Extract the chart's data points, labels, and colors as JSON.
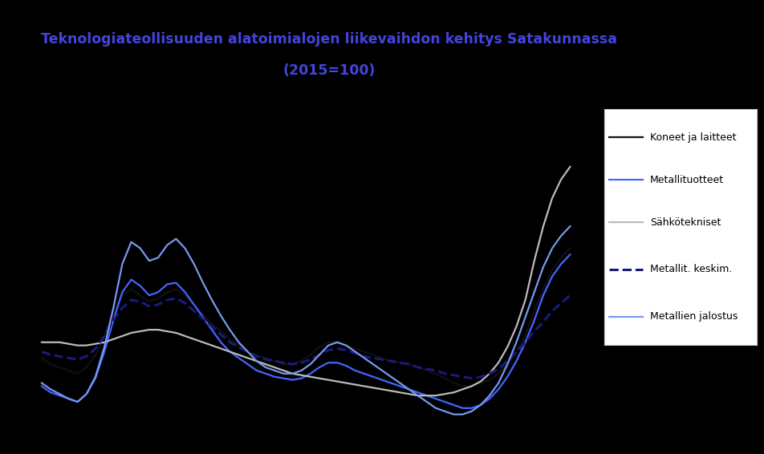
{
  "title_line1": "Teknologiateollisuuden alatoimialojen liikevaihdon kehitys Satakunnassa",
  "title_line2": "(2015=100)",
  "title_color": "#4444dd",
  "background_color": "#000000",
  "plot_bg_color": "#000000",
  "legend_bg_color": "#ffffff",
  "legend_text_color": "#000000",
  "series_order": [
    "Koneet ja laitteet",
    "Metallituotteet",
    "Sähkötekniset",
    "Metallit. keskim.",
    "Metallien jalostus"
  ],
  "series": {
    "Koneet ja laitteet": {
      "color": "#111111",
      "linestyle": "solid",
      "linewidth": 1.6
    },
    "Metallituotteet": {
      "color": "#4466ff",
      "linestyle": "solid",
      "linewidth": 1.6
    },
    "Sähkötekniset": {
      "color": "#bbbbbb",
      "linestyle": "solid",
      "linewidth": 1.6
    },
    "Metallit. keskim.": {
      "color": "#1a1a7a",
      "linestyle": "dashed",
      "linewidth": 2.2
    },
    "Metallien jalostus": {
      "color": "#7799ee",
      "linestyle": "solid",
      "linewidth": 1.6
    }
  },
  "koneet_ja_laitteet": [
    78,
    74,
    72,
    70,
    68,
    72,
    80,
    92,
    108,
    118,
    122,
    118,
    114,
    116,
    120,
    122,
    118,
    112,
    106,
    100,
    95,
    90,
    86,
    82,
    80,
    78,
    76,
    74,
    74,
    76,
    80,
    85,
    88,
    88,
    86,
    84,
    82,
    80,
    78,
    76,
    75,
    74,
    72,
    70,
    68,
    65,
    62,
    60,
    60,
    62,
    64,
    68,
    74,
    82,
    92,
    108,
    122,
    134,
    142,
    148
  ],
  "metallituotteet": [
    60,
    56,
    54,
    52,
    50,
    55,
    65,
    82,
    102,
    120,
    128,
    124,
    118,
    120,
    125,
    126,
    120,
    112,
    104,
    96,
    88,
    82,
    78,
    74,
    70,
    68,
    66,
    65,
    64,
    65,
    68,
    72,
    75,
    75,
    73,
    70,
    68,
    66,
    64,
    62,
    60,
    58,
    56,
    54,
    52,
    50,
    48,
    46,
    46,
    48,
    52,
    58,
    66,
    76,
    88,
    102,
    118,
    130,
    138,
    144
  ],
  "sahkotekniset": [
    88,
    88,
    88,
    87,
    86,
    86,
    87,
    88,
    90,
    92,
    94,
    95,
    96,
    96,
    95,
    94,
    92,
    90,
    88,
    86,
    84,
    82,
    80,
    78,
    76,
    74,
    72,
    70,
    68,
    67,
    66,
    65,
    64,
    63,
    62,
    61,
    60,
    59,
    58,
    57,
    56,
    55,
    54,
    54,
    54,
    55,
    56,
    58,
    60,
    63,
    68,
    75,
    85,
    98,
    115,
    140,
    162,
    180,
    192,
    200
  ],
  "metallit_keskim": [
    82,
    80,
    79,
    78,
    77,
    79,
    84,
    92,
    102,
    110,
    115,
    114,
    111,
    112,
    115,
    116,
    113,
    108,
    103,
    98,
    93,
    88,
    85,
    82,
    79,
    77,
    76,
    75,
    74,
    75,
    77,
    80,
    83,
    84,
    83,
    81,
    79,
    78,
    77,
    76,
    75,
    74,
    72,
    71,
    70,
    68,
    67,
    66,
    65,
    66,
    68,
    71,
    76,
    82,
    88,
    95,
    101,
    108,
    113,
    118
  ],
  "metallien_jalostus": [
    62,
    58,
    55,
    52,
    50,
    55,
    66,
    85,
    110,
    138,
    152,
    148,
    140,
    142,
    150,
    154,
    148,
    138,
    126,
    115,
    105,
    96,
    88,
    82,
    76,
    72,
    70,
    68,
    68,
    70,
    74,
    80,
    86,
    88,
    86,
    82,
    78,
    74,
    70,
    66,
    62,
    58,
    54,
    50,
    46,
    44,
    42,
    42,
    44,
    48,
    54,
    62,
    74,
    88,
    104,
    120,
    136,
    148,
    156,
    162
  ]
}
